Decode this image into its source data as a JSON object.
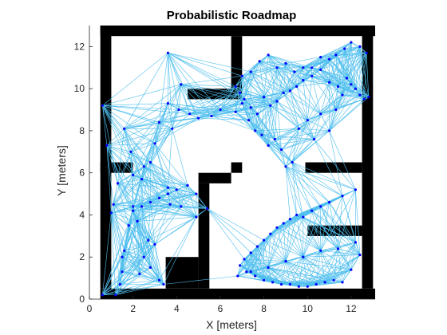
{
  "chart_data": {
    "type": "scatter",
    "title": "Probabilistic Roadmap",
    "xlabel": "X [meters]",
    "ylabel": "Y [meters]",
    "xlim": [
      0,
      13.1
    ],
    "ylim": [
      0,
      13
    ],
    "xticks": [
      "0",
      "2",
      "4",
      "6",
      "8",
      "10",
      "12"
    ],
    "yticks": [
      "0",
      "2",
      "4",
      "6",
      "8",
      "10",
      "12"
    ],
    "grid": false,
    "legend": "none",
    "colors": {
      "edges": "#4dbeee",
      "nodes": "#0000ff",
      "obstacles": "#000000",
      "free": "#ffffff"
    },
    "map_cells_meters": [
      [
        0.5,
        12.5,
        12.6,
        0.5
      ],
      [
        0.5,
        0.5,
        0.5,
        12.5
      ],
      [
        12.5,
        0.5,
        0.5,
        12.5
      ],
      [
        0.5,
        0.0,
        12.6,
        0.5
      ],
      [
        0.5,
        6.0,
        1.5,
        0.5
      ],
      [
        6.5,
        9.5,
        0.5,
        3.0
      ],
      [
        4.5,
        9.5,
        2.0,
        0.5
      ],
      [
        5.0,
        5.5,
        1.5,
        0.5
      ],
      [
        5.0,
        0.5,
        0.5,
        5.0
      ],
      [
        3.5,
        0.5,
        1.5,
        1.5
      ],
      [
        6.5,
        6.0,
        0.5,
        0.5
      ],
      [
        9.9,
        6.0,
        2.6,
        0.5
      ],
      [
        10.0,
        3.0,
        2.5,
        0.5
      ]
    ],
    "node_x": [
      0.6,
      0.6,
      0.8,
      1.2,
      1.4,
      1.5,
      1.6,
      1.8,
      2.0,
      2.2,
      2.3,
      2.5,
      2.7,
      2.8,
      3.0,
      3.2,
      3.4,
      3.6,
      3.6,
      3.7,
      4.2,
      4.9,
      4.2,
      3.8,
      3.0,
      2.5,
      1.9,
      1.6,
      1.3,
      1.1,
      1.0,
      1.5,
      2.0,
      2.4,
      2.8,
      3.2,
      3.6,
      4.1,
      4.6,
      5.0,
      5.6,
      6.0,
      6.7,
      7.0,
      7.3,
      7.6,
      7.9,
      8.2,
      8.5,
      8.8,
      9.0,
      9.3,
      9.6,
      10.0,
      10.3,
      10.6,
      11.0,
      11.3,
      11.6,
      12.0,
      12.4,
      12.8,
      12.7,
      12.4,
      12.0,
      11.7,
      11.3,
      11.0,
      10.6,
      10.2,
      9.8,
      9.4,
      9.0,
      8.6,
      8.2,
      7.8,
      7.4,
      7.0,
      6.7,
      6.9,
      7.1,
      7.4,
      7.7,
      8.0,
      8.3,
      8.6,
      8.9,
      9.2,
      9.5,
      9.8,
      10.2,
      10.6,
      11.0,
      11.4,
      11.8,
      12.2,
      12.6,
      12.2,
      11.6,
      11.0,
      10.6,
      10.2,
      9.8,
      9.5,
      9.2,
      8.9,
      8.6,
      8.3,
      8.0,
      7.7,
      7.4,
      7.1,
      6.9,
      7.2,
      7.6,
      8.0,
      8.4,
      8.8,
      9.2,
      9.6,
      10.0,
      10.4,
      10.8,
      11.2,
      11.6,
      12.0,
      12.4,
      12.2,
      11.4,
      10.6,
      9.8,
      9.0,
      8.2,
      7.4,
      6.8,
      5.4,
      4.9,
      4.5,
      4.0,
      3.6,
      3.2,
      2.8,
      2.4,
      2.0
    ],
    "node_y": [
      0.2,
      9.2,
      7.3,
      0.2,
      0.7,
      1.3,
      2.3,
      3.5,
      4.4,
      3.7,
      1.2,
      2.0,
      2.8,
      1.5,
      2.6,
      0.9,
      0.7,
      11.7,
      5.3,
      4.5,
      4.4,
      3.9,
      10.2,
      8.1,
      7.4,
      6.3,
      7.0,
      8.1,
      5.5,
      4.5,
      4.1,
      2.0,
      5.9,
      5.7,
      6.5,
      8.4,
      9.3,
      9.0,
      8.8,
      8.6,
      8.7,
      9.0,
      8.9,
      9.3,
      8.5,
      8.0,
      7.8,
      7.3,
      7.6,
      7.1,
      6.3,
      6.5,
      8.1,
      8.5,
      7.6,
      8.8,
      8.0,
      9.0,
      9.7,
      10.2,
      9.7,
      9.6,
      11.7,
      12.0,
      12.2,
      11.9,
      11.6,
      11.4,
      11.5,
      11.0,
      11.0,
      10.8,
      11.2,
      11.0,
      11.6,
      11.3,
      10.8,
      10.6,
      10.1,
      9.8,
      9.5,
      9.1,
      8.8,
      9.6,
      9.2,
      9.4,
      9.8,
      9.9,
      10.1,
      10.4,
      10.6,
      10.9,
      10.3,
      10.1,
      10.5,
      10.0,
      9.5,
      5.2,
      4.9,
      4.6,
      4.4,
      4.2,
      3.9,
      4.0,
      3.8,
      3.6,
      3.4,
      3.1,
      2.8,
      2.5,
      2.2,
      1.9,
      1.6,
      1.3,
      1.1,
      0.9,
      0.8,
      0.7,
      0.7,
      0.6,
      0.6,
      0.7,
      0.8,
      0.9,
      0.8,
      1.4,
      2.1,
      2.7,
      2.4,
      2.3,
      2.0,
      1.8,
      1.5,
      1.3,
      1.1,
      4.3,
      5.0,
      5.4,
      5.2,
      5.0,
      4.8,
      4.6,
      4.4,
      4.2
    ]
  }
}
